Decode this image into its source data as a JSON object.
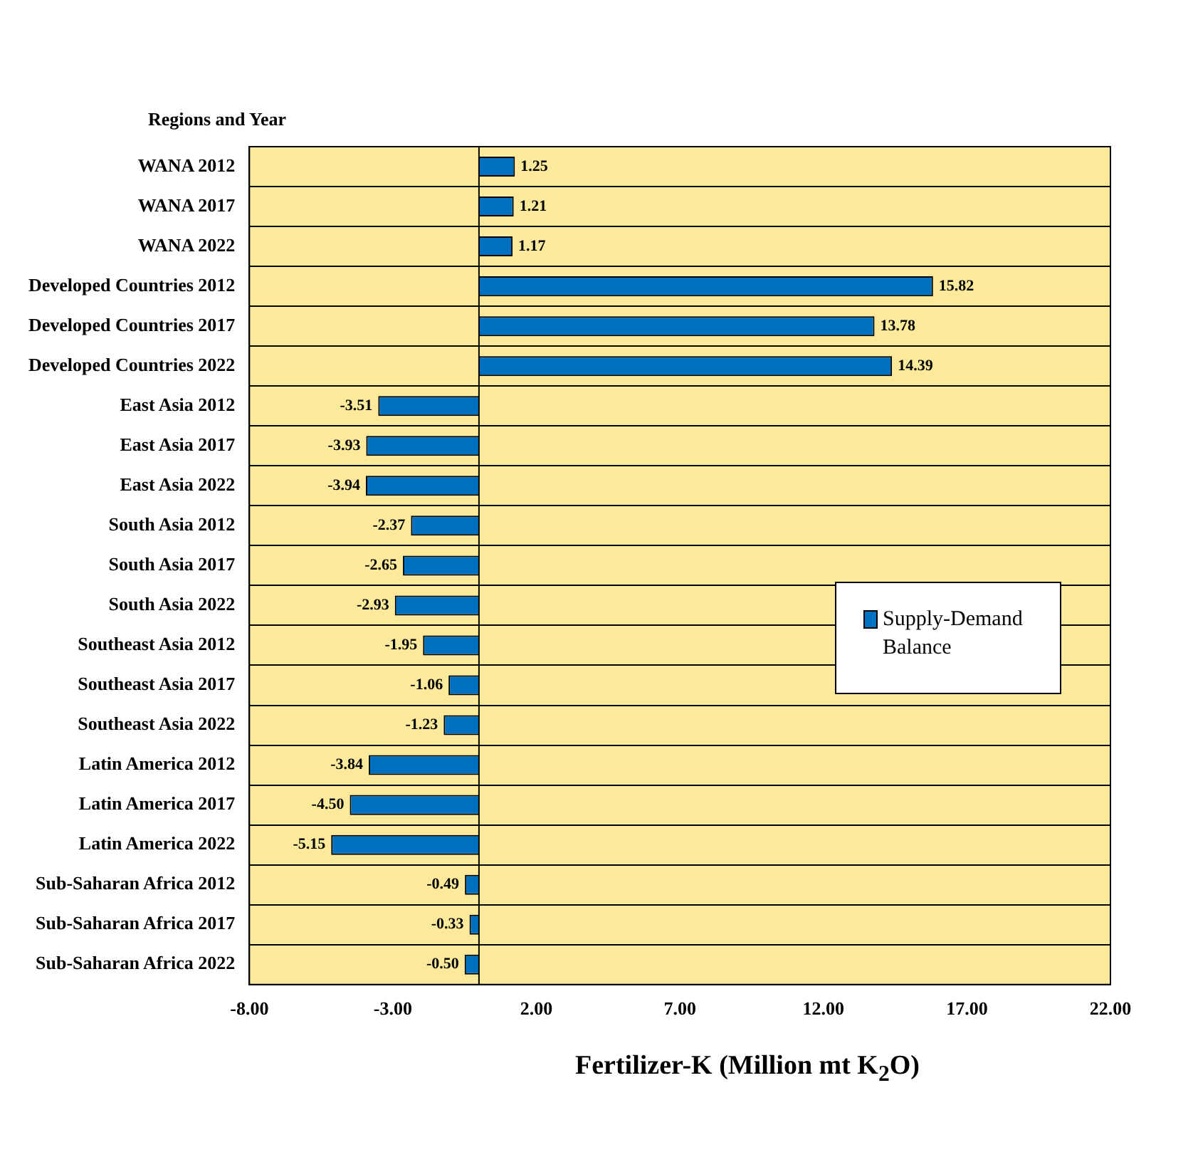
{
  "chart_data": {
    "type": "bar",
    "orientation": "horizontal",
    "ylabel": "Regions and Year",
    "xlabel": "Fertilizer-K (Million mt K$_{2}$O)",
    "categories": [
      "WANA 2012",
      "WANA 2017",
      "WANA 2022",
      "Developed Countries 2012",
      "Developed Countries 2017",
      "Developed Countries 2022",
      "East Asia 2012",
      "East Asia 2017",
      "East Asia 2022",
      "South Asia 2012",
      "South Asia 2017",
      "South Asia 2022",
      "Southeast Asia 2012",
      "Southeast Asia 2017",
      "Southeast Asia 2022",
      "Latin America 2012",
      "Latin America 2017",
      "Latin America 2022",
      "Sub-Saharan Africa 2012",
      "Sub-Saharan Africa 2017",
      "Sub-Saharan Africa 2022"
    ],
    "series": [
      {
        "name": "Supply-Demand Balance",
        "color": "#0070c0",
        "values": [
          1.25,
          1.21,
          1.17,
          15.82,
          13.78,
          14.39,
          -3.51,
          -3.93,
          -3.94,
          -2.37,
          -2.65,
          -2.93,
          -1.95,
          -1.06,
          -1.23,
          -3.84,
          -4.5,
          -5.15,
          -0.49,
          -0.33,
          -0.5
        ],
        "value_labels": [
          "1.25",
          "1.21",
          "1.17",
          "15.82",
          "13.78",
          "14.39",
          "-3.51",
          "-3.93",
          "-3.94",
          "-2.37",
          "-2.65",
          "-2.93",
          "-1.95",
          "-1.06",
          "-1.23",
          "-3.84",
          "-4.50",
          "-5.15",
          "-0.49",
          "-0.33",
          "-0.50"
        ]
      }
    ],
    "xlim": [
      -8,
      22
    ],
    "xticks": [
      {
        "value": -8,
        "label": "-8.00"
      },
      {
        "value": -3,
        "label": "-3.00"
      },
      {
        "value": 2,
        "label": "2.00"
      },
      {
        "value": 7,
        "label": "7.00"
      },
      {
        "value": 12,
        "label": "12.00"
      },
      {
        "value": 17,
        "label": "17.00"
      },
      {
        "value": 22,
        "label": "22.00"
      }
    ],
    "grid": "y",
    "legend": "right"
  }
}
